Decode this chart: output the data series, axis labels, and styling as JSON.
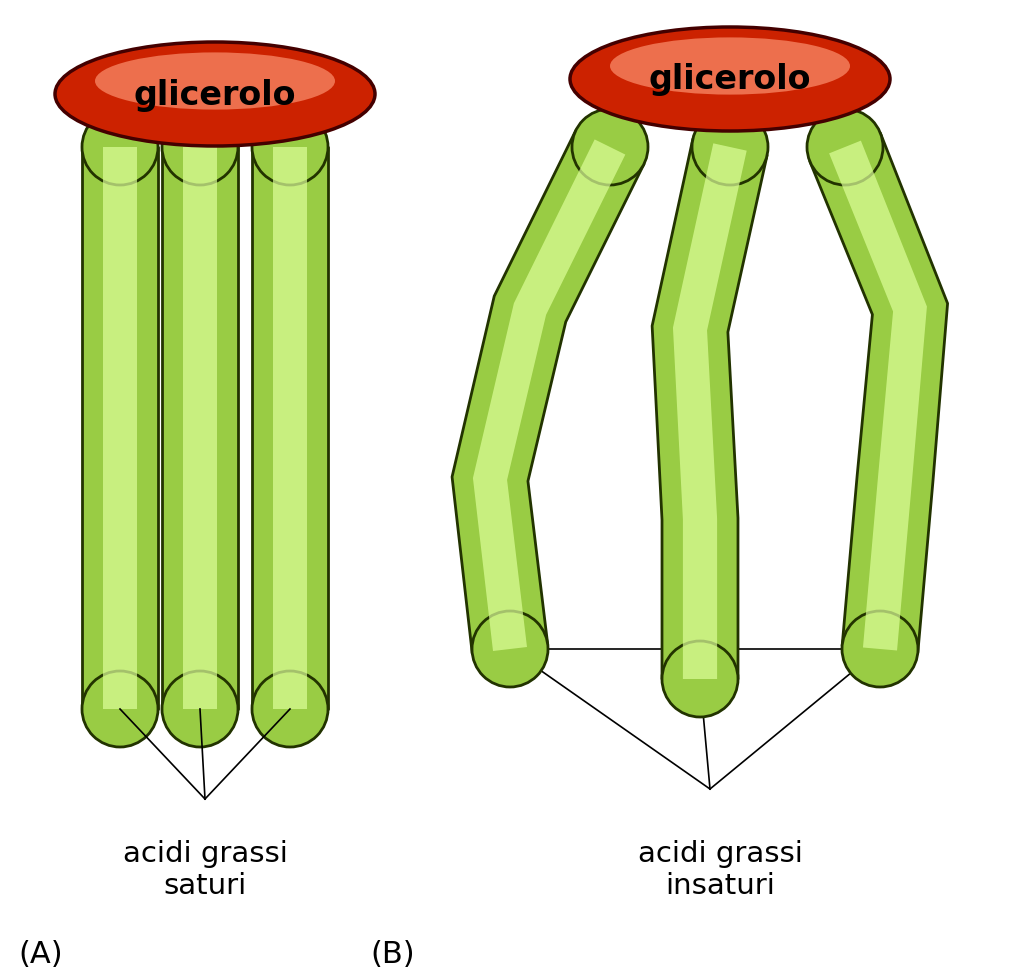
{
  "background_color": "#ffffff",
  "glycerol_color_dark": "#cc2200",
  "glycerol_color_light": "#ff9977",
  "chain_color_dark": "#66aa22",
  "chain_color_mid": "#99cc44",
  "chain_color_light": "#ddff99",
  "chain_outline": "#223300",
  "label_A_text": "(A)",
  "label_B_text": "(B)",
  "label_sat_line1": "acidi grassi",
  "label_sat_line2": "saturi",
  "label_unsat_line1": "acidi grassi",
  "label_unsat_line2": "insaturi",
  "glycerol_label": "glicerolo",
  "fig_width": 10.24,
  "fig_height": 9.79
}
